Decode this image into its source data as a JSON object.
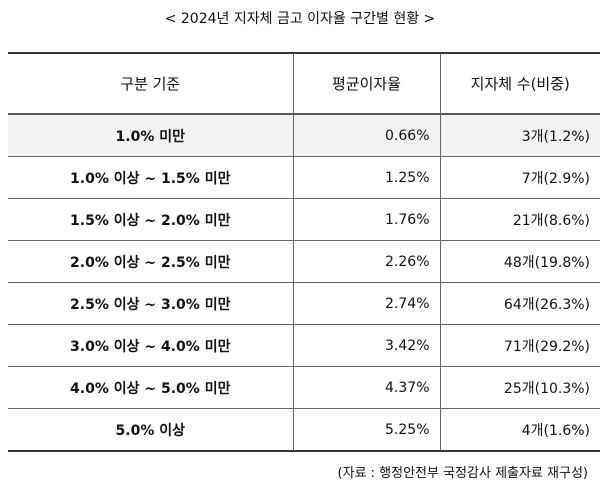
{
  "header": {
    "title": "< 2024년 지자체 금고 이자율 구간별 현황 >"
  },
  "table": {
    "columns": [
      "구분 기준",
      "평균이자율",
      "지자체 수(비중)"
    ],
    "rows": [
      [
        "1.0% 미만",
        "0.66%",
        "3개(1.2%)"
      ],
      [
        "1.0% 이상 ~ 1.5% 미만",
        "1.25%",
        "7개(2.9%)"
      ],
      [
        "1.5% 이상 ~ 2.0% 미만",
        "1.76%",
        "21개(8.6%)"
      ],
      [
        "2.0% 이상 ~ 2.5% 미만",
        "2.26%",
        "48개(19.8%)"
      ],
      [
        "2.5% 이상 ~ 3.0% 미만",
        "2.74%",
        "64개(26.3%)"
      ],
      [
        "3.0% 이상 ~ 4.0% 미만",
        "3.42%",
        "71개(29.2%)"
      ],
      [
        "4.0% 이상 ~ 5.0% 미만",
        "4.37%",
        "25개(10.3%)"
      ],
      [
        "5.0% 이상",
        "5.25%",
        "4개(1.6%)"
      ]
    ]
  },
  "footer": {
    "source": "(자료 : 행정안전부 국정감사 제출자료 재구성)"
  }
}
